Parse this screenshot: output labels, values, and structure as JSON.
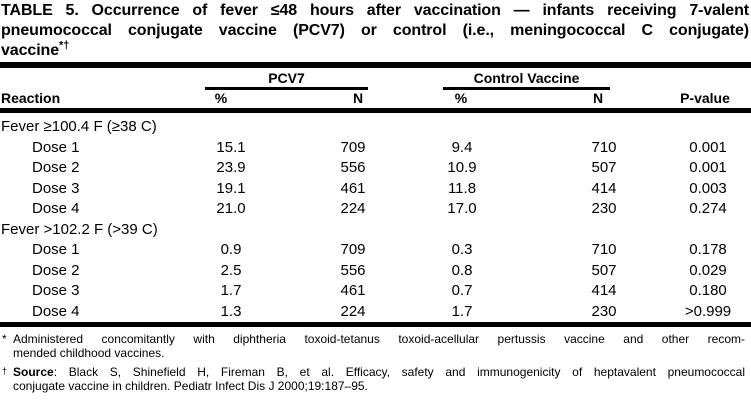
{
  "colors": {
    "ink": "#000000",
    "background": "#ffffff"
  },
  "title": {
    "lines": [
      "TABLE 5. Occurrence of fever ≤48 hours after vaccination — infants receiving 7-valent",
      "pneumococcal conjugate vaccine (PCV7) or control (i.e., meningococcal C conjugate)"
    ],
    "line3_base": "vaccine",
    "line3_sup": "*†"
  },
  "header": {
    "reaction": "Reaction",
    "groups": [
      {
        "label": "PCV7"
      },
      {
        "label": "Control Vaccine"
      }
    ],
    "pct1": "%",
    "n1": "N",
    "pct2": "%",
    "n2": "N",
    "pvalue": "P-value"
  },
  "table": {
    "sections": [
      {
        "label": "Fever ≥100.4 F (≥38 C)",
        "rows": [
          {
            "label": "Dose 1",
            "pcv7_pct": "15.1",
            "pcv7_n": "709",
            "ctrl_pct": "9.4",
            "ctrl_n": "710",
            "pvalue": "0.001"
          },
          {
            "label": "Dose 2",
            "pcv7_pct": "23.9",
            "pcv7_n": "556",
            "ctrl_pct": "10.9",
            "ctrl_n": "507",
            "pvalue": "0.001"
          },
          {
            "label": "Dose 3",
            "pcv7_pct": "19.1",
            "pcv7_n": "461",
            "ctrl_pct": "11.8",
            "ctrl_n": "414",
            "pvalue": "0.003"
          },
          {
            "label": "Dose 4",
            "pcv7_pct": "21.0",
            "pcv7_n": "224",
            "ctrl_pct": "17.0",
            "ctrl_n": "230",
            "pvalue": "0.274"
          }
        ]
      },
      {
        "label": "Fever >102.2 F (>39 C)",
        "rows": [
          {
            "label": "Dose 1",
            "pcv7_pct": "0.9",
            "pcv7_n": "709",
            "ctrl_pct": "0.3",
            "ctrl_n": "710",
            "pvalue": "0.178"
          },
          {
            "label": "Dose 2",
            "pcv7_pct": "2.5",
            "pcv7_n": "556",
            "ctrl_pct": "0.8",
            "ctrl_n": "507",
            "pvalue": "0.029"
          },
          {
            "label": "Dose 3",
            "pcv7_pct": "1.7",
            "pcv7_n": "461",
            "ctrl_pct": "0.7",
            "ctrl_n": "414",
            "pvalue": "0.180"
          },
          {
            "label": "Dose 4",
            "pcv7_pct": "1.3",
            "pcv7_n": "224",
            "ctrl_pct": "1.7",
            "ctrl_n": "230",
            "pvalue": ">0.999"
          }
        ]
      }
    ]
  },
  "footnotes": [
    {
      "marker": "*",
      "line1": "Administered concomitantly with diphtheria toxoid-tetanus toxoid-acellular pertussis vaccine and other recom-",
      "line2": "mended childhood vaccines."
    },
    {
      "marker": "†",
      "bold": "Source",
      "line1": ": Black S, Shinefield H, Fireman B, et al. Efficacy, safety and immunogenicity of heptavalent pneumococcal",
      "line2": "conjugate vaccine in children. Pediatr Infect Dis J 2000;19:187–95."
    }
  ]
}
